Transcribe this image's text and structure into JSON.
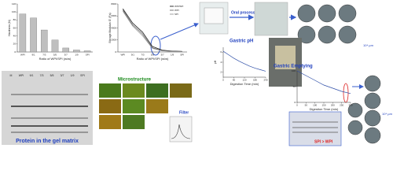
{
  "chart_data": [
    {
      "type": "bar",
      "ylabel": "Hardness (N)",
      "xlabel": "Ratio of WPI/SPI (w/w)",
      "categories": [
        "WPI",
        "9/1",
        "7/3",
        "5/5",
        "3/7",
        "1/9",
        "SPI"
      ],
      "values": [
        95,
        85,
        55,
        30,
        10,
        5,
        3
      ],
      "color": "#bfbfbf",
      "ylim": [
        0,
        120
      ],
      "yticks": [
        0,
        20,
        40,
        60,
        80,
        100,
        120
      ]
    },
    {
      "type": "line",
      "ylabel": "Storage Modulus G' (Pa)",
      "xlabel": "Ratio of WPI/SPI (w/w)",
      "categories": [
        "WPI",
        "9/1",
        "7/3",
        "5/5",
        "3/7",
        "1/9",
        "SPI"
      ],
      "series": [
        {
          "name": "WPI/SPI",
          "color": "#000000",
          "values": [
            7200,
            4800,
            3300,
            900,
            300,
            150,
            100
          ]
        },
        {
          "name": "WPI",
          "color": "#555555",
          "values": [
            7000,
            4500,
            3000,
            700,
            250,
            120,
            90
          ]
        },
        {
          "name": "SPI",
          "color": "#888888",
          "values": [
            6800,
            4300,
            2700,
            600,
            200,
            100,
            80
          ]
        }
      ],
      "ylim": [
        0,
        8000
      ],
      "yticks": [
        0,
        2000,
        4000,
        6000,
        8000
      ],
      "legend": "upper right"
    },
    {
      "type": "line",
      "ylabel": "pH",
      "xlabel": "Digestion Time (min)",
      "x": [
        0,
        30,
        60,
        90,
        120,
        150,
        180,
        210,
        240
      ],
      "values": [
        6.2,
        5.5,
        4.8,
        4.2,
        3.7,
        3.2,
        2.8,
        2.5,
        2.2
      ],
      "color": "#2f4fa8",
      "xlim": [
        0,
        240
      ],
      "xticks": [
        0,
        60,
        120,
        180,
        240
      ],
      "ylim": [
        1,
        7
      ],
      "yticks": [
        2,
        4,
        6
      ]
    },
    {
      "type": "line",
      "xlabel": "Digestion Time (min)",
      "x": [
        0,
        50,
        100,
        150,
        200,
        250,
        300
      ],
      "values": [
        100,
        85,
        70,
        55,
        45,
        35,
        28
      ],
      "color": "#2f4fa8",
      "xlim": [
        0,
        300
      ],
      "xticks": [
        0,
        50,
        100,
        150,
        200,
        250,
        300
      ],
      "ylim": [
        0,
        100
      ],
      "yticks": [
        0,
        50,
        100
      ]
    }
  ],
  "labels": {
    "protein_gel": "Protein in the gel matrix",
    "microstructure": "Microstructure",
    "filter": "Filter",
    "oral": "Oral process",
    "gastric_ph": "Gastric pH",
    "gastric_emptying": "Gastric Emptying",
    "spi_wpi": "SPI > WPI",
    "scale1": "10⁴ µm",
    "scale2": "10⁴ µm"
  },
  "gel_lanes": [
    "M",
    "WPI",
    "9/1",
    "7/3",
    "5/5",
    "3/7",
    "1/9",
    "SPI"
  ]
}
